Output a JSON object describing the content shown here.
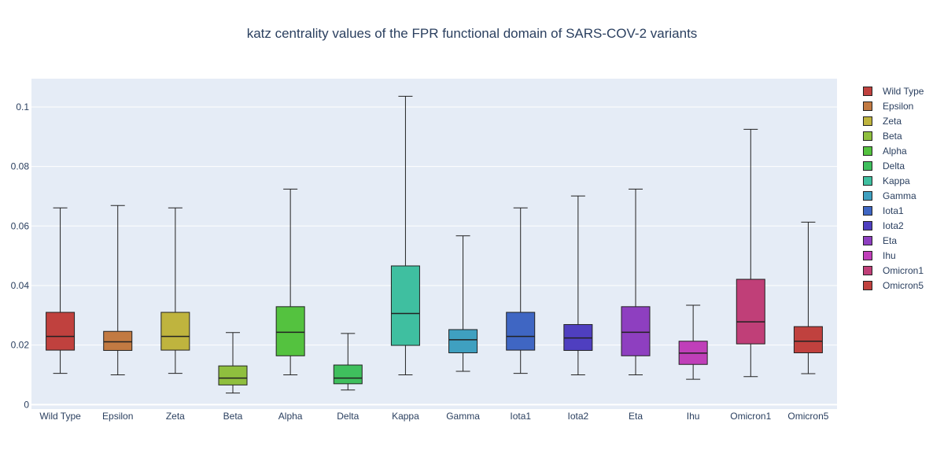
{
  "chart_data": {
    "type": "box",
    "title": "katz centrality values of the FPR functional domain of SARS-COV-2 variants",
    "xlabel": "",
    "ylabel": "",
    "ylim": [
      -0.0015,
      0.1095
    ],
    "yticks": [
      0,
      0.02,
      0.04,
      0.06,
      0.08,
      0.1
    ],
    "ytick_labels": [
      "0",
      "0.02",
      "0.04",
      "0.06",
      "0.08",
      "0.1"
    ],
    "grid": true,
    "legend_position": "right",
    "series": [
      {
        "name": "Wild Type",
        "color": "#c0413e",
        "min": 0.0105,
        "q1": 0.0183,
        "median": 0.0229,
        "q3": 0.031,
        "max": 0.0661
      },
      {
        "name": "Epsilon",
        "color": "#c27a42",
        "min": 0.01,
        "q1": 0.0182,
        "median": 0.0211,
        "q3": 0.0246,
        "max": 0.0669
      },
      {
        "name": "Zeta",
        "color": "#bfb43e",
        "min": 0.0105,
        "q1": 0.0183,
        "median": 0.0229,
        "q3": 0.031,
        "max": 0.0661
      },
      {
        "name": "Beta",
        "color": "#8fbf3e",
        "min": 0.0039,
        "q1": 0.0066,
        "median": 0.0089,
        "q3": 0.013,
        "max": 0.0242
      },
      {
        "name": "Alpha",
        "color": "#54c23f",
        "min": 0.01,
        "q1": 0.0164,
        "median": 0.0243,
        "q3": 0.0329,
        "max": 0.0724
      },
      {
        "name": "Delta",
        "color": "#3fbf5d",
        "min": 0.0049,
        "q1": 0.007,
        "median": 0.0089,
        "q3": 0.0133,
        "max": 0.0239
      },
      {
        "name": "Kappa",
        "color": "#3fbfa0",
        "min": 0.01,
        "q1": 0.0199,
        "median": 0.0306,
        "q3": 0.0466,
        "max": 0.1036
      },
      {
        "name": "Gamma",
        "color": "#3fa0c0",
        "min": 0.0112,
        "q1": 0.0174,
        "median": 0.0218,
        "q3": 0.0252,
        "max": 0.0567
      },
      {
        "name": "Iota1",
        "color": "#3f66c3",
        "min": 0.0105,
        "q1": 0.0183,
        "median": 0.0229,
        "q3": 0.031,
        "max": 0.0661
      },
      {
        "name": "Iota2",
        "color": "#4f3fc0",
        "min": 0.01,
        "q1": 0.0182,
        "median": 0.0224,
        "q3": 0.0269,
        "max": 0.0701
      },
      {
        "name": "Eta",
        "color": "#8e3fc0",
        "min": 0.01,
        "q1": 0.0164,
        "median": 0.0243,
        "q3": 0.0329,
        "max": 0.0724
      },
      {
        "name": "Ihu",
        "color": "#c03fb9",
        "min": 0.0085,
        "q1": 0.0135,
        "median": 0.0173,
        "q3": 0.0213,
        "max": 0.0334
      },
      {
        "name": "Omicron1",
        "color": "#c03f78",
        "min": 0.0094,
        "q1": 0.0204,
        "median": 0.0278,
        "q3": 0.0421,
        "max": 0.0925
      },
      {
        "name": "Omicron5",
        "color": "#c0413e",
        "min": 0.0104,
        "q1": 0.0174,
        "median": 0.0213,
        "q3": 0.0262,
        "max": 0.0613
      }
    ]
  }
}
